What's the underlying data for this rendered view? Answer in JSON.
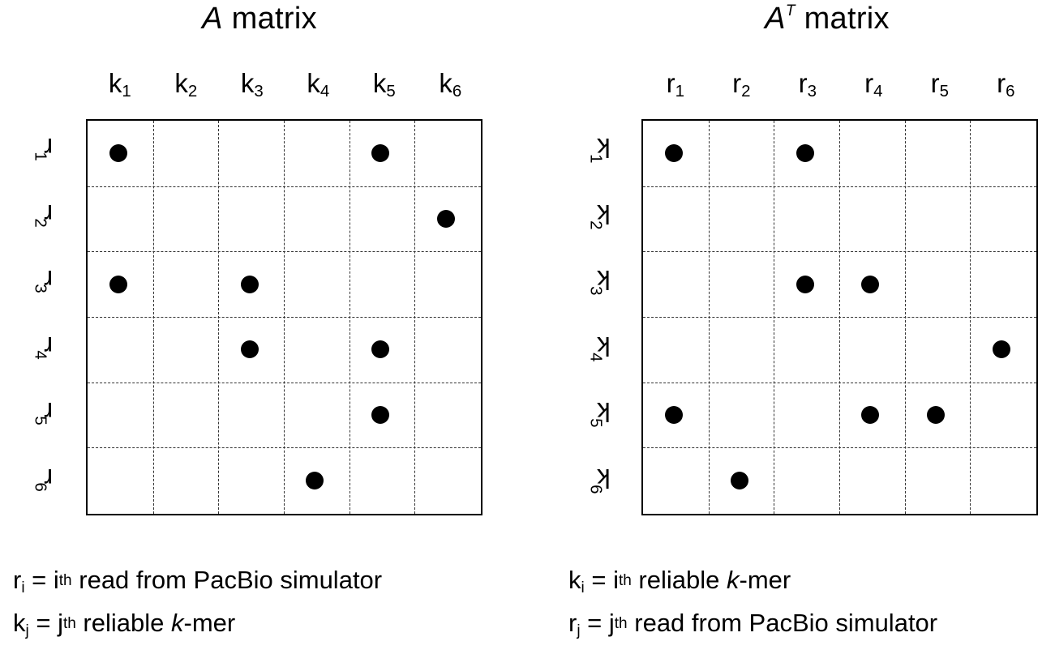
{
  "left": {
    "title_italic": "A",
    "title_rest": " matrix",
    "columns": [
      {
        "base": "k",
        "sub": "1"
      },
      {
        "base": "k",
        "sub": "2"
      },
      {
        "base": "k",
        "sub": "3"
      },
      {
        "base": "k",
        "sub": "4"
      },
      {
        "base": "k",
        "sub": "5"
      },
      {
        "base": "k",
        "sub": "6"
      }
    ],
    "rows": [
      {
        "base": "r",
        "sub": "1"
      },
      {
        "base": "r",
        "sub": "2"
      },
      {
        "base": "r",
        "sub": "3"
      },
      {
        "base": "r",
        "sub": "4"
      },
      {
        "base": "r",
        "sub": "5"
      },
      {
        "base": "r",
        "sub": "6"
      }
    ],
    "entries": [
      [
        0,
        0
      ],
      [
        0,
        4
      ],
      [
        1,
        5
      ],
      [
        2,
        0
      ],
      [
        2,
        2
      ],
      [
        3,
        2
      ],
      [
        3,
        4
      ],
      [
        4,
        4
      ],
      [
        5,
        3
      ]
    ],
    "legend": [
      {
        "lhs": "r",
        "lhs_sub": "i",
        "mid": " = i",
        "sup": "th",
        "text": " read from PacBio simulator",
        "ital": "",
        "tail": ""
      },
      {
        "lhs": "k",
        "lhs_sub": "j",
        "mid": " = j",
        "sup": "th",
        "text": " reliable ",
        "ital": "k",
        "tail": "-mer"
      }
    ]
  },
  "right": {
    "title_italic": "A",
    "title_sup": "T",
    "title_rest": " matrix",
    "columns": [
      {
        "base": "r",
        "sub": "1"
      },
      {
        "base": "r",
        "sub": "2"
      },
      {
        "base": "r",
        "sub": "3"
      },
      {
        "base": "r",
        "sub": "4"
      },
      {
        "base": "r",
        "sub": "5"
      },
      {
        "base": "r",
        "sub": "6"
      }
    ],
    "rows": [
      {
        "base": "k",
        "sub": "1"
      },
      {
        "base": "k",
        "sub": "2"
      },
      {
        "base": "k",
        "sub": "3"
      },
      {
        "base": "k",
        "sub": "4"
      },
      {
        "base": "k",
        "sub": "5"
      },
      {
        "base": "k",
        "sub": "6"
      }
    ],
    "entries": [
      [
        0,
        0
      ],
      [
        0,
        2
      ],
      [
        2,
        2
      ],
      [
        2,
        3
      ],
      [
        3,
        5
      ],
      [
        4,
        0
      ],
      [
        4,
        3
      ],
      [
        4,
        4
      ],
      [
        5,
        1
      ]
    ],
    "legend": [
      {
        "lhs": "k",
        "lhs_sub": "i",
        "mid": " = i",
        "sup": "th",
        "text": " reliable ",
        "ital": "k",
        "tail": "-mer"
      },
      {
        "lhs": "r",
        "lhs_sub": "j",
        "mid": " = j",
        "sup": "th",
        "text": " read from PacBio simulator",
        "ital": "",
        "tail": ""
      }
    ]
  }
}
